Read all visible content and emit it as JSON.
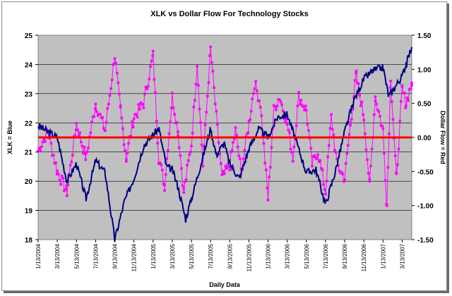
{
  "chart_data": {
    "type": "line",
    "title": "XLK vs Dollar Flow For Technology Stocks",
    "xlabel": "Daily Data",
    "ylabel": "XLK = Blue",
    "y2label": "Dollar Flow = Red",
    "categories": [
      "1/13/2004",
      "3/13/2004",
      "5/13/2004",
      "7/13/2004",
      "9/13/2004",
      "11/13/2004",
      "1/13/2005",
      "3/13/2005",
      "5/13/2005",
      "7/13/2005",
      "9/13/2005",
      "11/13/2005",
      "1/13/2006",
      "3/13/2006",
      "5/13/2006",
      "7/13/2006",
      "9/13/2006",
      "11/13/2006",
      "1/13/2007",
      "3/13/2007"
    ],
    "ylim": [
      18,
      25
    ],
    "yticks": [
      "18",
      "19",
      "20",
      "21",
      "22",
      "23",
      "24",
      "25"
    ],
    "y2lim": [
      -1.5,
      1.5
    ],
    "y2ticks": [
      "-1.50",
      "-1.00",
      "-0.50",
      "0.00",
      "0.50",
      "1.00",
      "1.50"
    ],
    "grid": "horizontal",
    "colors": {
      "plot_background": "#c0c0c0",
      "xlk": "#000080",
      "flow": "#ff00ff",
      "zero_line": "#ff0000"
    },
    "series": [
      {
        "axis": "left",
        "color": "#000080",
        "x": [
          0,
          1,
          1.5,
          2,
          2.5,
          3,
          3.5,
          4,
          4.5,
          5,
          5.5,
          6,
          6.3,
          6.7,
          7,
          7.3,
          7.7,
          8,
          8.5,
          9,
          9.3,
          9.7,
          10,
          10.5,
          11,
          11.5,
          12,
          12.5,
          13,
          13.5,
          14,
          14.5,
          15,
          15.5,
          16,
          16.5,
          17,
          17.5,
          18,
          18.3,
          18.6,
          19,
          19.2,
          19.5
        ],
        "values": [
          21.9,
          21.5,
          20.0,
          20.6,
          19.4,
          20.7,
          20.3,
          18.0,
          19.3,
          20.1,
          21.2,
          21.6,
          21.8,
          20.5,
          20.4,
          19.8,
          18.7,
          19.4,
          20.6,
          21.8,
          20.9,
          21.3,
          20.6,
          20.1,
          21.1,
          21.8,
          21.5,
          22.2,
          22.3,
          21.3,
          20.3,
          20.4,
          19.2,
          20.3,
          21.7,
          22.8,
          23.5,
          23.8,
          23.9,
          22.9,
          23.2,
          23.6,
          24.0,
          24.6
        ]
      },
      {
        "axis": "right",
        "color": "#ff00ff",
        "x": [
          0,
          0.5,
          1,
          1.5,
          2,
          2.5,
          3,
          3.5,
          4,
          4.3,
          4.6,
          5,
          5.5,
          6,
          6.3,
          6.6,
          7,
          7.3,
          7.6,
          8,
          8.3,
          8.6,
          9,
          9.3,
          9.6,
          10,
          10.3,
          10.6,
          11,
          11.3,
          11.6,
          12,
          12.3,
          12.6,
          13,
          13.3,
          13.6,
          14,
          14.3,
          14.6,
          15,
          15.3,
          15.6,
          16,
          16.3,
          16.6,
          17,
          17.3,
          17.6,
          18,
          18.2,
          18.4,
          18.7,
          19,
          19.2,
          19.5
        ],
        "values": [
          -0.2,
          0.1,
          -0.5,
          -0.8,
          0.2,
          -0.3,
          0.5,
          0.1,
          1.2,
          0.4,
          -0.3,
          0.3,
          0.5,
          1.2,
          -0.3,
          -0.7,
          0.6,
          0.1,
          -0.8,
          -0.1,
          1.1,
          -0.4,
          1.3,
          0.3,
          -0.6,
          -0.4,
          0.1,
          -0.5,
          0.2,
          0.8,
          0.5,
          -0.9,
          0.4,
          0.6,
          0.2,
          -0.3,
          0.6,
          0.4,
          -0.4,
          -0.2,
          -0.8,
          0.3,
          -0.4,
          -0.6,
          0.2,
          0.9,
          0.3,
          -0.7,
          0.6,
          0.1,
          -1.0,
          0.9,
          -0.6,
          0.7,
          0.5,
          0.8
        ]
      }
    ]
  }
}
